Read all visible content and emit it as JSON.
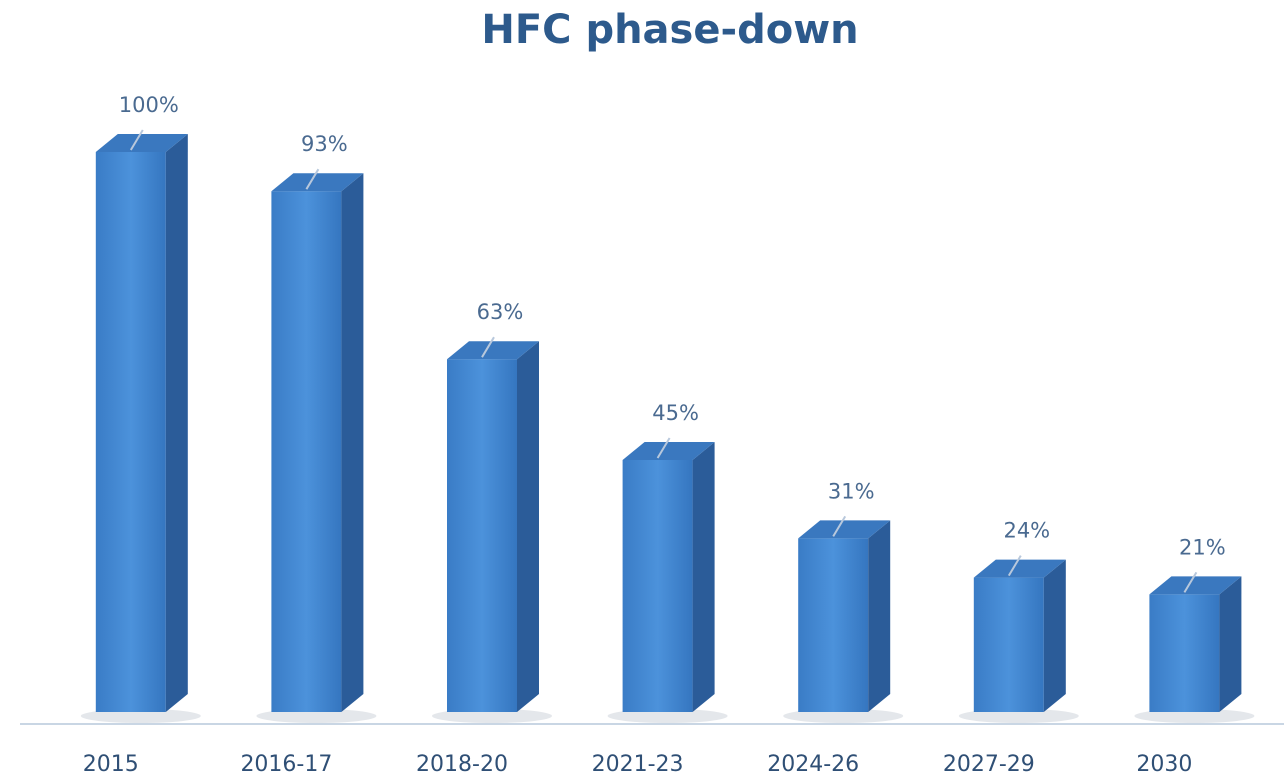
{
  "chart_data": {
    "type": "bar3d",
    "title": "HFC phase-down",
    "categories": [
      "2015",
      "2016-17",
      "2018-20",
      "2021-23",
      "2024-26",
      "2027-29",
      "2030"
    ],
    "values": [
      100,
      93,
      63,
      45,
      31,
      24,
      21
    ],
    "value_labels": [
      "100%",
      "93%",
      "63%",
      "45%",
      "31%",
      "24%",
      "21%"
    ],
    "color": "#4a8fd6"
  }
}
